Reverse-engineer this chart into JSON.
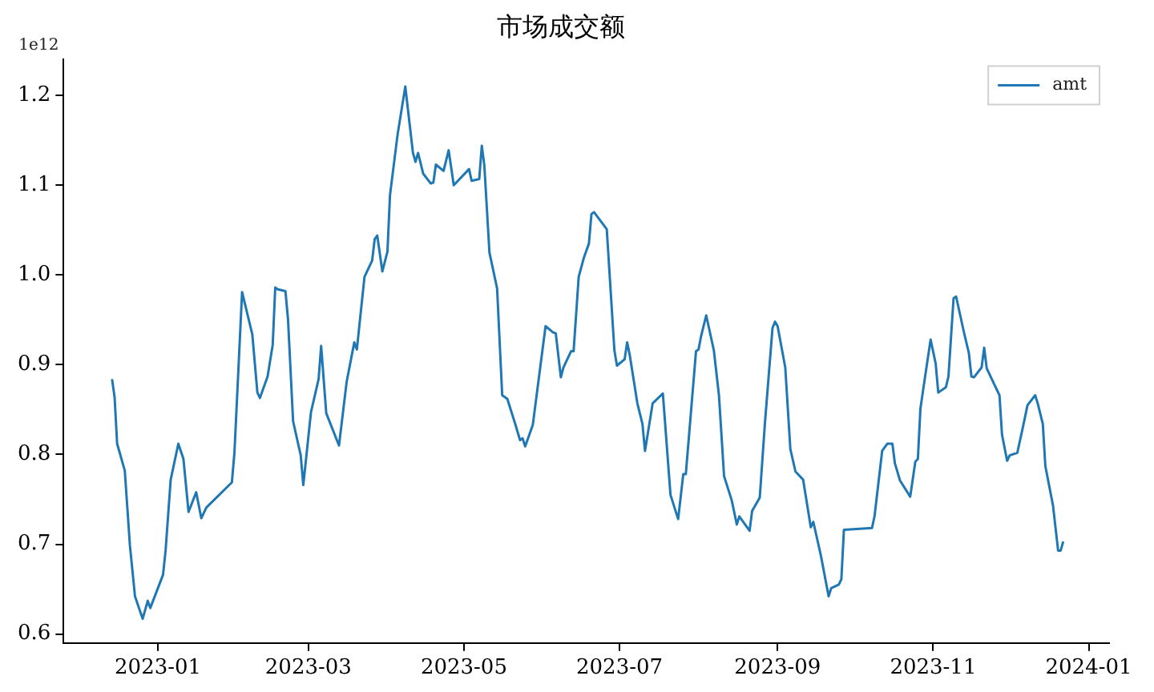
{
  "chart_data": {
    "type": "line",
    "title": "市场成交额",
    "annotations": [
      "1e12"
    ],
    "xlim": [
      "2022-11-25",
      "2024-01-09"
    ],
    "xticks": [
      "2023-01",
      "2023-03",
      "2023-05",
      "2023-07",
      "2023-09",
      "2023-11",
      "2024-01"
    ],
    "ylim": [
      0.59,
      1.24
    ],
    "yticks": [
      0.6,
      0.7,
      0.8,
      0.9,
      {
        "value": 1,
        "label": "1.0"
      },
      1.1,
      1.2
    ],
    "grid": false,
    "legend": "top right",
    "marker": "none",
    "line_style": "solid",
    "series": [
      {
        "name": "amt",
        "color": "#1f77b4",
        "x": [
          "2022-12-14",
          "2022-12-15",
          "2022-12-16",
          "2022-12-19",
          "2022-12-21",
          "2022-12-23",
          "2022-12-26",
          "2022-12-28",
          "2022-12-29",
          "2023-01-03",
          "2023-01-04",
          "2023-01-06",
          "2023-01-09",
          "2023-01-11",
          "2023-01-13",
          "2023-01-16",
          "2023-01-18",
          "2023-01-20",
          "2023-01-30",
          "2023-01-31",
          "2023-02-03",
          "2023-02-07",
          "2023-02-09",
          "2023-02-10",
          "2023-02-13",
          "2023-02-15",
          "2023-02-16",
          "2023-02-17",
          "2023-02-20",
          "2023-02-21",
          "2023-02-23",
          "2023-02-26",
          "2023-02-27",
          "2023-03-02",
          "2023-03-05",
          "2023-03-06",
          "2023-03-08",
          "2023-03-13",
          "2023-03-16",
          "2023-03-19",
          "2023-03-20",
          "2023-03-23",
          "2023-03-26",
          "2023-03-27",
          "2023-03-28",
          "2023-03-30",
          "2023-04-01",
          "2023-04-02",
          "2023-04-05",
          "2023-04-08",
          "2023-04-11",
          "2023-04-12",
          "2023-04-13",
          "2023-04-15",
          "2023-04-18",
          "2023-04-19",
          "2023-04-20",
          "2023-04-23",
          "2023-04-25",
          "2023-04-27",
          "2023-05-03",
          "2023-05-04",
          "2023-05-07",
          "2023-05-08",
          "2023-05-09",
          "2023-05-11",
          "2023-05-14",
          "2023-05-16",
          "2023-05-18",
          "2023-05-21",
          "2023-05-23",
          "2023-05-24",
          "2023-05-25",
          "2023-05-28",
          "2023-06-02",
          "2023-06-05",
          "2023-06-06",
          "2023-06-08",
          "2023-06-09",
          "2023-06-12",
          "2023-06-13",
          "2023-06-15",
          "2023-06-17",
          "2023-06-19",
          "2023-06-20",
          "2023-06-21",
          "2023-06-26",
          "2023-06-29",
          "2023-06-30",
          "2023-07-03",
          "2023-07-04",
          "2023-07-05",
          "2023-07-08",
          "2023-07-10",
          "2023-07-11",
          "2023-07-14",
          "2023-07-18",
          "2023-07-21",
          "2023-07-24",
          "2023-07-26",
          "2023-07-27",
          "2023-07-31",
          "2023-08-01",
          "2023-08-02",
          "2023-08-04",
          "2023-08-07",
          "2023-08-09",
          "2023-08-11",
          "2023-08-14",
          "2023-08-16",
          "2023-08-17",
          "2023-08-21",
          "2023-08-22",
          "2023-08-25",
          "2023-08-27",
          "2023-08-30",
          "2023-08-31",
          "2023-09-01",
          "2023-09-04",
          "2023-09-06",
          "2023-09-08",
          "2023-09-11",
          "2023-09-14",
          "2023-09-15",
          "2023-09-18",
          "2023-09-21",
          "2023-09-22",
          "2023-09-25",
          "2023-09-26",
          "2023-09-27",
          "2023-10-08",
          "2023-10-09",
          "2023-10-12",
          "2023-10-14",
          "2023-10-16",
          "2023-10-17",
          "2023-10-19",
          "2023-10-23",
          "2023-10-25",
          "2023-10-26",
          "2023-10-27",
          "2023-10-29",
          "2023-10-31",
          "2023-11-02",
          "2023-11-03",
          "2023-11-06",
          "2023-11-07",
          "2023-11-09",
          "2023-11-10",
          "2023-11-13",
          "2023-11-15",
          "2023-11-16",
          "2023-11-17",
          "2023-11-20",
          "2023-11-21",
          "2023-11-22",
          "2023-11-24",
          "2023-11-27",
          "2023-11-28",
          "2023-11-30",
          "2023-12-01",
          "2023-12-04",
          "2023-12-06",
          "2023-12-08",
          "2023-12-11",
          "2023-12-12",
          "2023-12-14",
          "2023-12-15",
          "2023-12-18",
          "2023-12-20",
          "2023-12-21",
          "2023-12-22"
        ],
        "values": [
          0.884,
          0.864,
          0.812,
          0.782,
          0.699,
          0.642,
          0.617,
          0.637,
          0.629,
          0.666,
          0.693,
          0.772,
          0.812,
          0.795,
          0.736,
          0.758,
          0.729,
          0.741,
          0.769,
          0.802,
          0.981,
          0.934,
          0.869,
          0.863,
          0.887,
          0.922,
          0.986,
          0.984,
          0.982,
          0.951,
          0.837,
          0.799,
          0.766,
          0.847,
          0.884,
          0.921,
          0.846,
          0.81,
          0.881,
          0.925,
          0.917,
          0.998,
          1.016,
          1.04,
          1.044,
          1.004,
          1.026,
          1.089,
          1.157,
          1.21,
          1.136,
          1.126,
          1.136,
          1.113,
          1.102,
          1.103,
          1.123,
          1.116,
          1.139,
          1.1,
          1.118,
          1.105,
          1.107,
          1.144,
          1.122,
          1.025,
          0.985,
          0.866,
          0.862,
          0.835,
          0.816,
          0.818,
          0.809,
          0.833,
          0.943,
          0.936,
          0.935,
          0.886,
          0.897,
          0.915,
          0.915,
          0.998,
          1.019,
          1.035,
          1.068,
          1.07,
          1.051,
          0.916,
          0.899,
          0.906,
          0.925,
          0.911,
          0.857,
          0.834,
          0.804,
          0.857,
          0.868,
          0.755,
          0.728,
          0.778,
          0.778,
          0.915,
          0.917,
          0.932,
          0.955,
          0.916,
          0.866,
          0.776,
          0.749,
          0.722,
          0.731,
          0.715,
          0.737,
          0.752,
          0.834,
          0.941,
          0.948,
          0.943,
          0.897,
          0.806,
          0.781,
          0.772,
          0.719,
          0.725,
          0.687,
          0.642,
          0.651,
          0.655,
          0.661,
          0.716,
          0.718,
          0.731,
          0.804,
          0.812,
          0.812,
          0.79,
          0.771,
          0.753,
          0.792,
          0.795,
          0.851,
          0.89,
          0.928,
          0.901,
          0.869,
          0.875,
          0.887,
          0.974,
          0.976,
          0.937,
          0.913,
          0.887,
          0.886,
          0.897,
          0.919,
          0.896,
          0.884,
          0.866,
          0.822,
          0.793,
          0.799,
          0.802,
          0.828,
          0.855,
          0.866,
          0.857,
          0.834,
          0.787,
          0.743,
          0.693,
          0.693,
          0.703
        ]
      }
    ]
  }
}
